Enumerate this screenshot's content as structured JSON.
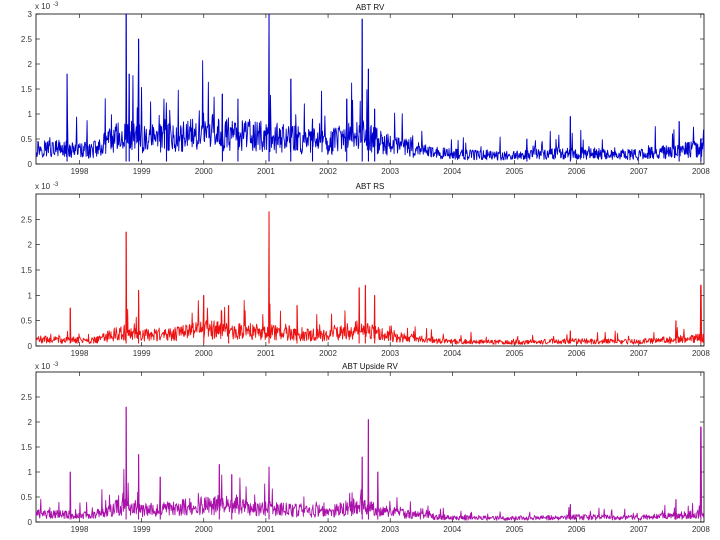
{
  "chart_data": [
    {
      "type": "line",
      "title": "ABT RV",
      "exponent_label": "x 10",
      "exponent_power": "-3",
      "color": "#0000cc",
      "xlim": [
        1997.3,
        2008.05
      ],
      "ylim": [
        0,
        3
      ],
      "yticks": [
        "0",
        "0.5",
        "1",
        "1.5",
        "2",
        "2.5",
        "3"
      ],
      "ytick_values": [
        0,
        0.5,
        1,
        1.5,
        2,
        2.5,
        3
      ],
      "xticks": [
        "1998",
        "1999",
        "2000",
        "2001",
        "2002",
        "2003",
        "2004",
        "2005",
        "2006",
        "2007",
        "2008"
      ],
      "xtick_values": [
        1998,
        1999,
        2000,
        2001,
        2002,
        2003,
        2004,
        2005,
        2006,
        2007,
        2008
      ],
      "baseline": [
        [
          1997.3,
          0.3
        ],
        [
          1998.2,
          0.25
        ],
        [
          1998.7,
          0.55
        ],
        [
          1999.0,
          0.45
        ],
        [
          1999.5,
          0.5
        ],
        [
          2000.0,
          0.6
        ],
        [
          2000.5,
          0.55
        ],
        [
          2001.0,
          0.5
        ],
        [
          2001.5,
          0.45
        ],
        [
          2002.0,
          0.4
        ],
        [
          2002.5,
          0.55
        ],
        [
          2003.0,
          0.35
        ],
        [
          2003.5,
          0.25
        ],
        [
          2004.0,
          0.18
        ],
        [
          2005.0,
          0.15
        ],
        [
          2005.7,
          0.2
        ],
        [
          2006.0,
          0.2
        ],
        [
          2007.0,
          0.17
        ],
        [
          2007.6,
          0.25
        ],
        [
          2008.05,
          0.3
        ]
      ],
      "spikes": [
        [
          1997.8,
          1.8
        ],
        [
          1998.75,
          3.0
        ],
        [
          1998.8,
          1.8
        ],
        [
          1998.95,
          2.5
        ],
        [
          1999.4,
          0.9
        ],
        [
          2000.3,
          1.4
        ],
        [
          2000.55,
          1.3
        ],
        [
          2001.05,
          3.0
        ],
        [
          2001.4,
          1.7
        ],
        [
          2001.75,
          0.9
        ],
        [
          2002.3,
          1.3
        ],
        [
          2002.55,
          2.9
        ],
        [
          2002.65,
          1.9
        ],
        [
          2002.75,
          1.1
        ],
        [
          2005.2,
          0.5
        ],
        [
          2005.9,
          0.95
        ],
        [
          2007.65,
          0.85
        ],
        [
          2008.0,
          0.5
        ]
      ]
    },
    {
      "type": "line",
      "title": "ABT RS",
      "exponent_label": "x 10",
      "exponent_power": "-3",
      "color": "#ee1111",
      "xlim": [
        1997.3,
        2008.05
      ],
      "ylim": [
        0,
        3
      ],
      "yticks": [
        "0",
        "0.5",
        "1",
        "1.5",
        "2",
        "2.5"
      ],
      "ytick_values": [
        0,
        0.5,
        1,
        1.5,
        2,
        2.5
      ],
      "xticks": [
        "1998",
        "1999",
        "2000",
        "2001",
        "2002",
        "2003",
        "2004",
        "2005",
        "2006",
        "2007",
        "2008"
      ],
      "xtick_values": [
        1998,
        1999,
        2000,
        2001,
        2002,
        2003,
        2004,
        2005,
        2006,
        2007,
        2008
      ],
      "baseline": [
        [
          1997.3,
          0.12
        ],
        [
          1998.2,
          0.1
        ],
        [
          1998.7,
          0.25
        ],
        [
          1999.0,
          0.2
        ],
        [
          1999.5,
          0.22
        ],
        [
          2000.0,
          0.3
        ],
        [
          2000.5,
          0.28
        ],
        [
          2001.0,
          0.25
        ],
        [
          2001.5,
          0.22
        ],
        [
          2002.0,
          0.2
        ],
        [
          2002.5,
          0.3
        ],
        [
          2003.0,
          0.18
        ],
        [
          2003.5,
          0.12
        ],
        [
          2004.0,
          0.08
        ],
        [
          2005.0,
          0.07
        ],
        [
          2006.0,
          0.09
        ],
        [
          2007.0,
          0.08
        ],
        [
          2007.6,
          0.12
        ],
        [
          2008.05,
          0.15
        ]
      ],
      "spikes": [
        [
          1997.85,
          0.75
        ],
        [
          1998.75,
          2.25
        ],
        [
          1998.95,
          1.1
        ],
        [
          2000.0,
          1.0
        ],
        [
          2000.4,
          0.8
        ],
        [
          2001.05,
          2.65
        ],
        [
          2001.5,
          0.8
        ],
        [
          2002.5,
          1.15
        ],
        [
          2002.6,
          1.2
        ],
        [
          2002.75,
          1.0
        ],
        [
          2005.9,
          0.3
        ],
        [
          2007.6,
          0.5
        ],
        [
          2008.0,
          1.2
        ]
      ]
    },
    {
      "type": "line",
      "title": "ABT Upside RV",
      "exponent_label": "x 10",
      "exponent_power": "-3",
      "color": "#aa11aa",
      "xlim": [
        1997.3,
        2008.05
      ],
      "ylim": [
        0,
        3
      ],
      "yticks": [
        "0",
        "0.5",
        "1",
        "1.5",
        "2",
        "2.5"
      ],
      "ytick_values": [
        0,
        0.5,
        1,
        1.5,
        2,
        2.5
      ],
      "xticks": [
        "1998",
        "1999",
        "2000",
        "2001",
        "2002",
        "2003",
        "2004",
        "2005",
        "2006",
        "2007",
        "2008"
      ],
      "xtick_values": [
        1998,
        1999,
        2000,
        2001,
        2002,
        2003,
        2004,
        2005,
        2006,
        2007,
        2008
      ],
      "baseline": [
        [
          1997.3,
          0.15
        ],
        [
          1998.2,
          0.12
        ],
        [
          1998.7,
          0.3
        ],
        [
          1999.0,
          0.22
        ],
        [
          1999.5,
          0.25
        ],
        [
          2000.0,
          0.32
        ],
        [
          2000.5,
          0.3
        ],
        [
          2001.0,
          0.25
        ],
        [
          2001.5,
          0.22
        ],
        [
          2002.0,
          0.2
        ],
        [
          2002.5,
          0.3
        ],
        [
          2003.0,
          0.18
        ],
        [
          2003.5,
          0.12
        ],
        [
          2004.0,
          0.08
        ],
        [
          2005.0,
          0.07
        ],
        [
          2006.0,
          0.09
        ],
        [
          2007.0,
          0.08
        ],
        [
          2007.6,
          0.12
        ],
        [
          2008.05,
          0.15
        ]
      ],
      "spikes": [
        [
          1997.85,
          1.0
        ],
        [
          1998.75,
          2.3
        ],
        [
          1998.95,
          1.35
        ],
        [
          1999.3,
          0.9
        ],
        [
          2000.25,
          1.15
        ],
        [
          2000.45,
          0.95
        ],
        [
          2001.05,
          1.1
        ],
        [
          2002.55,
          1.3
        ],
        [
          2002.65,
          2.05
        ],
        [
          2002.8,
          1.0
        ],
        [
          2005.9,
          0.35
        ],
        [
          2007.6,
          0.45
        ],
        [
          2008.0,
          1.9
        ]
      ]
    }
  ]
}
